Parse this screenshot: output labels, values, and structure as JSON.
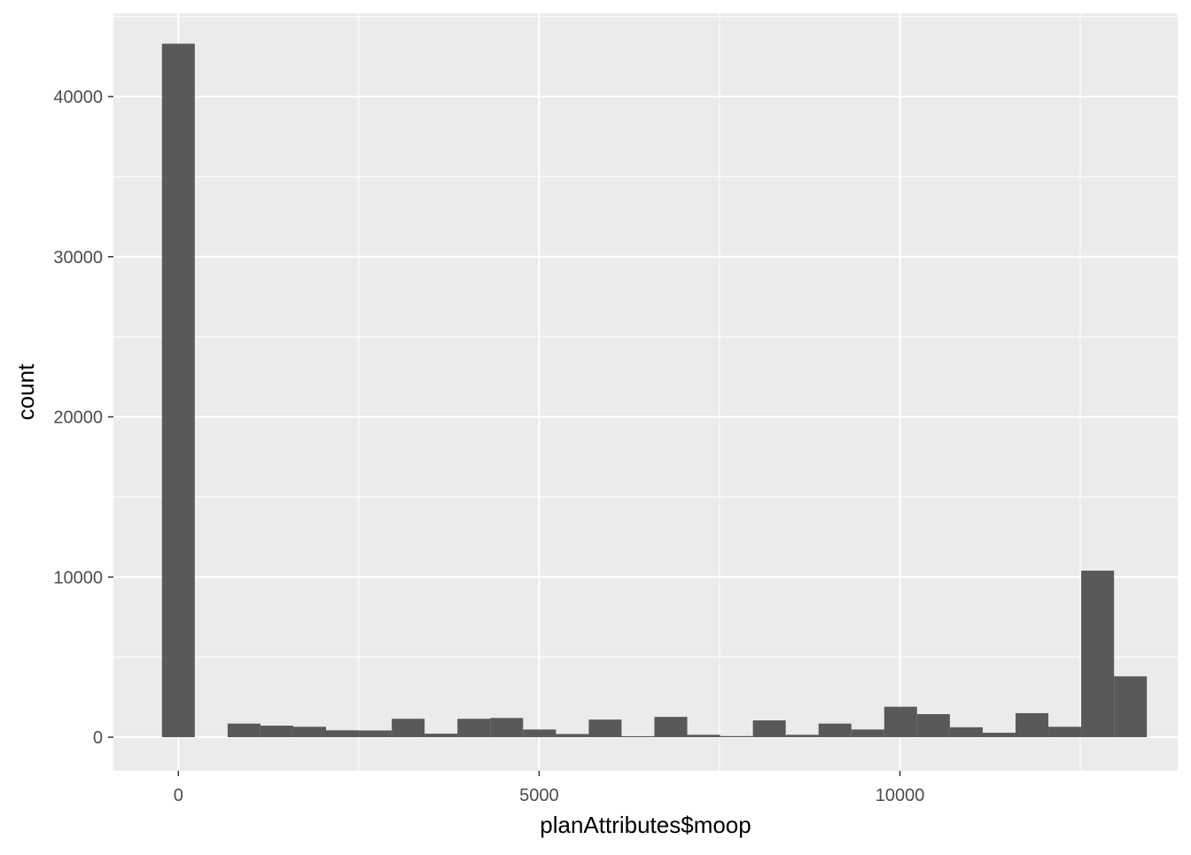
{
  "chart_data": {
    "type": "bar",
    "title": "",
    "xlabel": "planAttributes$moop",
    "ylabel": "count",
    "xlim": [
      -900,
      13850
    ],
    "ylim": [
      -2100,
      45200
    ],
    "x_ticks": [
      0,
      5000,
      10000
    ],
    "x_tick_labels": [
      "0",
      "5000",
      "10000"
    ],
    "y_ticks": [
      0,
      10000,
      20000,
      30000,
      40000
    ],
    "y_tick_labels": [
      "0",
      "10000",
      "20000",
      "30000",
      "40000"
    ],
    "grid": true,
    "legend": "none",
    "bin_width": 455,
    "bins": [
      {
        "x": 0,
        "count": 43300
      },
      {
        "x": 455,
        "count": 0
      },
      {
        "x": 910,
        "count": 850
      },
      {
        "x": 1365,
        "count": 720
      },
      {
        "x": 1820,
        "count": 650
      },
      {
        "x": 2275,
        "count": 430
      },
      {
        "x": 2730,
        "count": 420
      },
      {
        "x": 3185,
        "count": 1150
      },
      {
        "x": 3640,
        "count": 220
      },
      {
        "x": 4095,
        "count": 1150
      },
      {
        "x": 4550,
        "count": 1200
      },
      {
        "x": 5005,
        "count": 480
      },
      {
        "x": 5460,
        "count": 200
      },
      {
        "x": 5915,
        "count": 1100
      },
      {
        "x": 6370,
        "count": 60
      },
      {
        "x": 6825,
        "count": 1270
      },
      {
        "x": 7280,
        "count": 150
      },
      {
        "x": 7735,
        "count": 70
      },
      {
        "x": 8190,
        "count": 1050
      },
      {
        "x": 8645,
        "count": 150
      },
      {
        "x": 9100,
        "count": 850
      },
      {
        "x": 9555,
        "count": 480
      },
      {
        "x": 10010,
        "count": 1900
      },
      {
        "x": 10465,
        "count": 1440
      },
      {
        "x": 10920,
        "count": 620
      },
      {
        "x": 11375,
        "count": 280
      },
      {
        "x": 11830,
        "count": 1500
      },
      {
        "x": 12285,
        "count": 650
      },
      {
        "x": 12740,
        "count": 10400
      },
      {
        "x": 13195,
        "count": 3800
      }
    ]
  },
  "colors": {
    "panel_background": "#ebebeb",
    "grid_major": "#ffffff",
    "bar_fill": "#595959",
    "tick_label": "#4d4d4d",
    "axis_title": "#000000"
  }
}
